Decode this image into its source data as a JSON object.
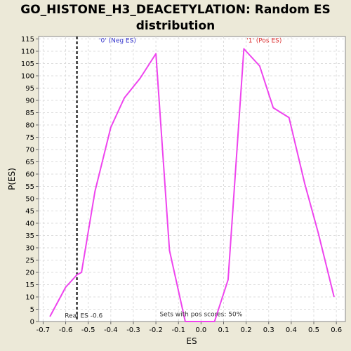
{
  "chart_data": {
    "type": "line",
    "title_lines": [
      "GO_HISTONE_H3_DEACETYLATION: Random ES",
      "distribution"
    ],
    "xlabel": "ES",
    "ylabel": "P(ES)",
    "xlim": [
      -0.72,
      0.64
    ],
    "ylim": [
      0,
      116
    ],
    "x_ticks": [
      -0.7,
      -0.6,
      -0.5,
      -0.4,
      -0.3,
      -0.2,
      -0.1,
      0.0,
      0.1,
      0.2,
      0.3,
      0.4,
      0.5,
      0.6
    ],
    "x_tick_labels": [
      "-0.7",
      "-0.6",
      "-0.5",
      "-0.4",
      "-0.3",
      "-0.2",
      "-0.1",
      "0.0",
      "0.1",
      "0.2",
      "0.3",
      "0.4",
      "0.5",
      "0.6"
    ],
    "y_ticks": [
      0,
      5,
      10,
      15,
      20,
      25,
      30,
      35,
      40,
      45,
      50,
      55,
      60,
      65,
      70,
      75,
      80,
      85,
      90,
      95,
      100,
      105,
      110,
      115
    ],
    "y_tick_labels": [
      "0",
      "5",
      "10",
      "15",
      "20",
      "25",
      "30",
      "35",
      "40",
      "45",
      "50",
      "55",
      "60",
      "65",
      "70",
      "75",
      "80",
      "85",
      "90",
      "95",
      "100",
      "105",
      "110",
      "115"
    ],
    "grid": true,
    "series": [
      {
        "color": "#EE44EE",
        "x": [
          -0.67,
          -0.6,
          -0.55,
          -0.53,
          -0.47,
          -0.4,
          -0.34,
          -0.27,
          -0.2,
          -0.14,
          -0.07,
          0.06,
          0.12,
          0.19,
          0.26,
          0.32,
          0.39,
          0.46,
          0.52,
          0.59
        ],
        "y": [
          2,
          14,
          19,
          20,
          53,
          79,
          91,
          99,
          109,
          29,
          0,
          0,
          17,
          111,
          104,
          87,
          83,
          56,
          36,
          10
        ]
      }
    ],
    "vline": {
      "x": -0.55,
      "style": "dashed",
      "color": "#000000"
    },
    "annotations": [
      {
        "text": "'0' (Neg ES)",
        "x": -0.37,
        "y": 113,
        "color": "#3333CC"
      },
      {
        "text": "'1' (Pos ES)",
        "x": 0.28,
        "y": 113,
        "color": "#DD3333"
      },
      {
        "text": "Real ES -0.6",
        "x": -0.52,
        "y": 1,
        "color": "#333333"
      },
      {
        "text": "Sets with pos scores: 50%",
        "x": 0.0,
        "y": 1.6,
        "color": "#333333"
      }
    ],
    "plot_background": "#FFFFFF",
    "page_background": "#ECE9D8"
  }
}
